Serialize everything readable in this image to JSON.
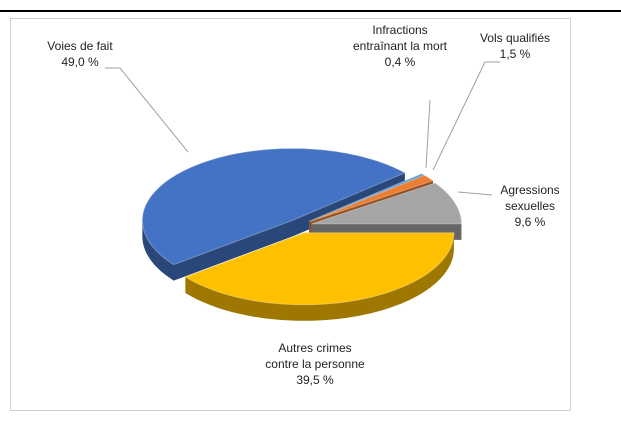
{
  "chart_data": {
    "type": "pie3d",
    "categories": [
      "Voies de fait",
      "Infractions entraînant la mort",
      "Vols qualifiés",
      "Agressions sexuelles",
      "Autres crimes contre la personne"
    ],
    "values": [
      49.0,
      0.4,
      1.5,
      9.6,
      39.5
    ],
    "value_labels": [
      "49,0 %",
      "0,4 %",
      "1,5 %",
      "9,6 %",
      "39,5 %"
    ],
    "colors": [
      "#4472c4",
      "#5b9bd5",
      "#ed7d31",
      "#a5a5a5",
      "#ffc000"
    ]
  }
}
